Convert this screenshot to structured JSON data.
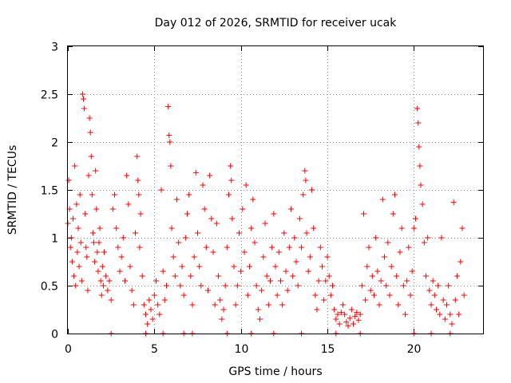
{
  "chart_data": {
    "type": "scatter",
    "title": "Day 012 of 2026, SRMTID for receiver ucak",
    "xlabel": "GPS time / hours",
    "ylabel": "SRMTID / TECUs",
    "xlim": [
      0,
      24
    ],
    "ylim": [
      0,
      3
    ],
    "x_ticks": [
      0,
      5,
      10,
      15,
      20
    ],
    "x_tick_labels": [
      "0",
      "5",
      "10",
      "15",
      "20"
    ],
    "y_ticks": [
      0,
      0.5,
      1,
      1.5,
      2,
      2.5,
      3
    ],
    "y_tick_labels": [
      "0",
      "0.5",
      "1",
      "1.5",
      "2",
      "2.5",
      "3"
    ],
    "grid": true,
    "marker": "+",
    "series_color": "#ff0000",
    "series": [
      {
        "name": "SRMTID",
        "points": [
          [
            0.0,
            1.15
          ],
          [
            0.05,
            1.6
          ],
          [
            0.1,
            1.3
          ],
          [
            0.15,
            0.9
          ],
          [
            0.2,
            1.0
          ],
          [
            0.25,
            0.75
          ],
          [
            0.3,
            1.2
          ],
          [
            0.35,
            0.6
          ],
          [
            0.4,
            1.75
          ],
          [
            0.45,
            0.5
          ],
          [
            0.5,
            1.35
          ],
          [
            0.55,
            0.85
          ],
          [
            0.6,
            1.1
          ],
          [
            0.65,
            0.7
          ],
          [
            0.7,
            1.45
          ],
          [
            0.75,
            0.95
          ],
          [
            0.8,
            0.55
          ],
          [
            0.85,
            2.5
          ],
          [
            0.9,
            2.45
          ],
          [
            0.95,
            2.35
          ],
          [
            1.0,
            1.25
          ],
          [
            1.05,
            0.9
          ],
          [
            1.1,
            0.8
          ],
          [
            1.15,
            0.45
          ],
          [
            1.2,
            1.65
          ],
          [
            1.25,
            2.25
          ],
          [
            1.3,
            2.1
          ],
          [
            1.35,
            1.85
          ],
          [
            1.4,
            1.45
          ],
          [
            1.45,
            1.05
          ],
          [
            1.5,
            0.95
          ],
          [
            1.55,
            0.75
          ],
          [
            1.6,
            1.7
          ],
          [
            1.65,
            1.3
          ],
          [
            1.7,
            0.85
          ],
          [
            1.75,
            0.65
          ],
          [
            1.8,
            0.95
          ],
          [
            1.85,
            1.1
          ],
          [
            1.9,
            0.55
          ],
          [
            1.95,
            0.4
          ],
          [
            2.0,
            0.7
          ],
          [
            2.05,
            0.5
          ],
          [
            2.1,
            0.85
          ],
          [
            2.2,
            0.6
          ],
          [
            2.3,
            0.45
          ],
          [
            2.4,
            0.55
          ],
          [
            2.5,
            0.35
          ],
          [
            2.6,
            1.3
          ],
          [
            2.7,
            1.45
          ],
          [
            2.8,
            1.1
          ],
          [
            2.9,
            0.9
          ],
          [
            3.0,
            0.65
          ],
          [
            3.1,
            0.8
          ],
          [
            3.2,
            1.0
          ],
          [
            3.3,
            0.55
          ],
          [
            3.4,
            1.65
          ],
          [
            3.5,
            1.35
          ],
          [
            3.6,
            0.7
          ],
          [
            3.7,
            0.45
          ],
          [
            3.8,
            0.3
          ],
          [
            3.9,
            1.05
          ],
          [
            4.0,
            1.85
          ],
          [
            4.05,
            1.6
          ],
          [
            4.1,
            1.45
          ],
          [
            4.15,
            0.9
          ],
          [
            4.2,
            1.25
          ],
          [
            4.3,
            0.6
          ],
          [
            4.4,
            0.3
          ],
          [
            4.5,
            0.2
          ],
          [
            4.6,
            0.1
          ],
          [
            4.7,
            0.35
          ],
          [
            4.8,
            0.25
          ],
          [
            4.9,
            0.15
          ],
          [
            5.0,
            0.4
          ],
          [
            5.1,
            0.55
          ],
          [
            5.2,
            0.3
          ],
          [
            5.3,
            0.2
          ],
          [
            5.4,
            1.5
          ],
          [
            5.5,
            0.65
          ],
          [
            5.6,
            0.35
          ],
          [
            5.7,
            0.5
          ],
          [
            5.8,
            2.37
          ],
          [
            5.85,
            2.07
          ],
          [
            5.9,
            2.0
          ],
          [
            5.95,
            1.75
          ],
          [
            6.0,
            1.1
          ],
          [
            6.1,
            0.8
          ],
          [
            6.2,
            0.6
          ],
          [
            6.3,
            1.4
          ],
          [
            6.4,
            0.95
          ],
          [
            6.5,
            0.5
          ],
          [
            6.6,
            0.7
          ],
          [
            6.7,
            0.4
          ],
          [
            6.8,
            1.0
          ],
          [
            6.9,
            1.25
          ],
          [
            7.0,
            1.45
          ],
          [
            7.1,
            0.6
          ],
          [
            7.2,
            0.3
          ],
          [
            7.3,
            0.8
          ],
          [
            7.4,
            1.68
          ],
          [
            7.5,
            1.05
          ],
          [
            7.6,
            0.7
          ],
          [
            7.7,
            0.5
          ],
          [
            7.8,
            1.55
          ],
          [
            7.9,
            1.3
          ],
          [
            8.0,
            0.9
          ],
          [
            8.1,
            0.45
          ],
          [
            8.2,
            1.65
          ],
          [
            8.3,
            1.2
          ],
          [
            8.4,
            0.85
          ],
          [
            8.5,
            0.3
          ],
          [
            8.6,
            1.15
          ],
          [
            8.7,
            0.6
          ],
          [
            8.8,
            0.35
          ],
          [
            8.9,
            0.15
          ],
          [
            9.0,
            0.25
          ],
          [
            9.1,
            0.5
          ],
          [
            9.2,
            0.9
          ],
          [
            9.3,
            1.45
          ],
          [
            9.4,
            1.75
          ],
          [
            9.45,
            1.6
          ],
          [
            9.5,
            1.2
          ],
          [
            9.6,
            0.7
          ],
          [
            9.7,
            0.3
          ],
          [
            9.8,
            0.5
          ],
          [
            9.9,
            1.05
          ],
          [
            10.0,
            0.65
          ],
          [
            10.1,
            1.3
          ],
          [
            10.2,
            0.85
          ],
          [
            10.3,
            1.55
          ],
          [
            10.4,
            0.4
          ],
          [
            10.5,
            0.7
          ],
          [
            10.6,
            1.1
          ],
          [
            10.7,
            1.4
          ],
          [
            10.8,
            0.95
          ],
          [
            10.9,
            0.5
          ],
          [
            11.0,
            0.25
          ],
          [
            11.1,
            0.15
          ],
          [
            11.2,
            0.45
          ],
          [
            11.3,
            0.8
          ],
          [
            11.4,
            1.15
          ],
          [
            11.5,
            0.6
          ],
          [
            11.6,
            0.3
          ],
          [
            11.7,
            0.55
          ],
          [
            11.8,
            0.9
          ],
          [
            11.9,
            1.25
          ],
          [
            12.0,
            0.7
          ],
          [
            12.1,
            0.4
          ],
          [
            12.2,
            0.85
          ],
          [
            12.3,
            0.55
          ],
          [
            12.4,
            0.3
          ],
          [
            12.5,
            1.05
          ],
          [
            12.6,
            0.65
          ],
          [
            12.7,
            0.45
          ],
          [
            12.8,
            0.9
          ],
          [
            12.9,
            1.3
          ],
          [
            13.0,
            0.6
          ],
          [
            13.1,
            1.0
          ],
          [
            13.2,
            0.75
          ],
          [
            13.3,
            0.5
          ],
          [
            13.4,
            1.2
          ],
          [
            13.5,
            0.9
          ],
          [
            13.6,
            1.45
          ],
          [
            13.7,
            1.7
          ],
          [
            13.75,
            1.6
          ],
          [
            13.8,
            1.05
          ],
          [
            13.9,
            0.65
          ],
          [
            14.0,
            0.8
          ],
          [
            14.1,
            1.5
          ],
          [
            14.2,
            1.1
          ],
          [
            14.3,
            0.4
          ],
          [
            14.4,
            0.25
          ],
          [
            14.5,
            0.55
          ],
          [
            14.6,
            0.9
          ],
          [
            14.7,
            0.7
          ],
          [
            14.8,
            0.35
          ],
          [
            14.9,
            0.55
          ],
          [
            15.0,
            0.8
          ],
          [
            15.1,
            0.6
          ],
          [
            15.2,
            0.4
          ],
          [
            15.3,
            0.5
          ],
          [
            15.4,
            0.25
          ],
          [
            15.5,
            0.15
          ],
          [
            15.6,
            0.2
          ],
          [
            15.7,
            0.1
          ],
          [
            15.8,
            0.22
          ],
          [
            15.9,
            0.3
          ],
          [
            16.0,
            0.2
          ],
          [
            16.1,
            0.12
          ],
          [
            16.2,
            0.08
          ],
          [
            16.3,
            0.16
          ],
          [
            16.4,
            0.25
          ],
          [
            16.5,
            0.1
          ],
          [
            16.6,
            0.18
          ],
          [
            16.7,
            0.22
          ],
          [
            16.8,
            0.14
          ],
          [
            16.9,
            0.2
          ],
          [
            17.0,
            0.5
          ],
          [
            17.1,
            1.25
          ],
          [
            17.2,
            0.35
          ],
          [
            17.3,
            0.7
          ],
          [
            17.4,
            0.9
          ],
          [
            17.5,
            0.45
          ],
          [
            17.6,
            0.6
          ],
          [
            17.7,
            0.4
          ],
          [
            17.8,
            1.0
          ],
          [
            17.9,
            0.65
          ],
          [
            18.0,
            0.3
          ],
          [
            18.1,
            0.55
          ],
          [
            18.2,
            1.4
          ],
          [
            18.3,
            0.8
          ],
          [
            18.4,
            0.5
          ],
          [
            18.5,
            0.95
          ],
          [
            18.6,
            0.4
          ],
          [
            18.7,
            0.7
          ],
          [
            18.8,
            1.25
          ],
          [
            18.9,
            1.45
          ],
          [
            19.0,
            0.6
          ],
          [
            19.1,
            0.3
          ],
          [
            19.2,
            0.85
          ],
          [
            19.3,
            1.1
          ],
          [
            19.4,
            0.5
          ],
          [
            19.5,
            0.2
          ],
          [
            19.6,
            0.55
          ],
          [
            19.7,
            0.9
          ],
          [
            19.8,
            0.4
          ],
          [
            19.9,
            0.65
          ],
          [
            20.0,
            1.1
          ],
          [
            20.1,
            1.2
          ],
          [
            20.2,
            2.35
          ],
          [
            20.25,
            2.2
          ],
          [
            20.3,
            1.95
          ],
          [
            20.35,
            1.75
          ],
          [
            20.4,
            1.55
          ],
          [
            20.5,
            1.35
          ],
          [
            20.6,
            0.95
          ],
          [
            20.7,
            0.6
          ],
          [
            20.8,
            1.0
          ],
          [
            20.9,
            0.45
          ],
          [
            21.0,
            0.3
          ],
          [
            21.1,
            0.55
          ],
          [
            21.2,
            0.4
          ],
          [
            21.3,
            0.25
          ],
          [
            21.4,
            0.5
          ],
          [
            21.5,
            0.2
          ],
          [
            21.6,
            1.0
          ],
          [
            21.7,
            0.35
          ],
          [
            21.8,
            0.15
          ],
          [
            21.9,
            0.3
          ],
          [
            22.0,
            0.5
          ],
          [
            22.1,
            0.2
          ],
          [
            22.2,
            0.1
          ],
          [
            22.3,
            1.37
          ],
          [
            22.4,
            0.35
          ],
          [
            22.5,
            0.6
          ],
          [
            22.6,
            0.2
          ],
          [
            22.7,
            0.75
          ],
          [
            22.8,
            1.1
          ],
          [
            22.9,
            0.4
          ],
          [
            2.5,
            0.0
          ],
          [
            4.5,
            0.0
          ],
          [
            5.5,
            0.0
          ],
          [
            6.7,
            0.0
          ],
          [
            7.2,
            0.0
          ],
          [
            9.2,
            0.0
          ],
          [
            10.6,
            0.0
          ],
          [
            11.9,
            0.0
          ],
          [
            13.5,
            0.0
          ],
          [
            15.5,
            0.0
          ],
          [
            16.9,
            0.0
          ],
          [
            20.0,
            0.0
          ],
          [
            21.0,
            0.0
          ],
          [
            22.1,
            0.0
          ]
        ]
      }
    ]
  }
}
